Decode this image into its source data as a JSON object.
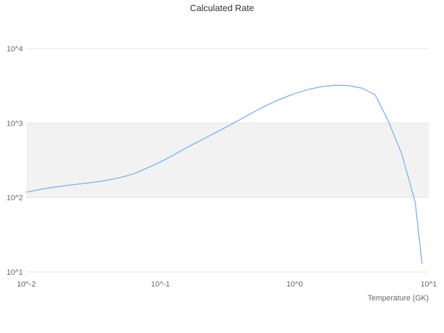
{
  "chart_data": {
    "type": "line",
    "title": "Calculated Rate",
    "xlabel": "Temperature (GK)",
    "ylabel": "",
    "x_scale": "log",
    "y_scale": "log",
    "xlim": [
      0.01,
      10
    ],
    "ylim": [
      10,
      10000
    ],
    "x_tick_values": [
      0.01,
      0.1,
      1,
      10
    ],
    "x_tick_labels": [
      "10^-2",
      "10^-1",
      "10^0",
      "10^1"
    ],
    "y_tick_values": [
      10,
      100,
      1000,
      10000
    ],
    "y_tick_labels": [
      "10^1",
      "10^2",
      "10^3",
      "10^4"
    ],
    "grid": true,
    "legend": "none",
    "band": {
      "from": 100,
      "to": 1000,
      "color": "#f2f2f2"
    },
    "line_color": "#7cb5ec",
    "grid_color": "#e6e6e6",
    "tick_label_color": "#666666",
    "title_color": "#333333",
    "series": [
      {
        "name": "Calculated Rate",
        "x": [
          0.01,
          0.0126,
          0.0158,
          0.02,
          0.0251,
          0.0316,
          0.0398,
          0.0501,
          0.0631,
          0.0794,
          0.1,
          0.126,
          0.158,
          0.2,
          0.251,
          0.316,
          0.398,
          0.501,
          0.631,
          0.794,
          1.0,
          1.26,
          1.58,
          2.0,
          2.51,
          3.16,
          3.98,
          5.01,
          6.31,
          7.08,
          7.94,
          8.91
        ],
        "y": [
          118,
          128,
          137,
          145,
          152,
          160,
          170,
          185,
          208,
          248,
          300,
          375,
          470,
          585,
          725,
          900,
          1130,
          1420,
          1760,
          2120,
          2480,
          2820,
          3080,
          3210,
          3180,
          2950,
          2400,
          1050,
          380,
          180,
          85,
          13
        ]
      }
    ]
  }
}
